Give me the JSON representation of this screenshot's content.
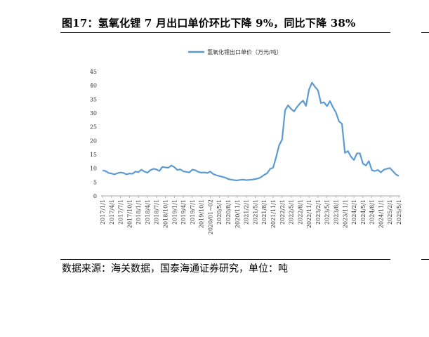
{
  "title": "图17：氢氧化锂 7 月出口单价环比下降 9%，同比下降 38%",
  "source": "数据来源：海关数据，国泰海通证券研究，单位：吨",
  "colors": {
    "line": "#5b9bd5",
    "axis": "#a6a6a6",
    "text": "#333333"
  },
  "chart_data": {
    "type": "line",
    "series": [
      {
        "name": "氢氧化锂出口单价（万元/吨）",
        "values": [
          9.2,
          9.0,
          8.3,
          8.1,
          7.8,
          8.2,
          8.5,
          8.3,
          7.8,
          8.1,
          8.0,
          8.8,
          8.6,
          9.5,
          8.8,
          8.4,
          9.3,
          9.8,
          9.6,
          9.0,
          10.5,
          10.3,
          10.2,
          11.0,
          10.4,
          9.4,
          9.6,
          8.9,
          8.7,
          8.5,
          9.5,
          9.3,
          8.7,
          8.4,
          8.5,
          8.3,
          8.8,
          7.9,
          7.5,
          7.2,
          6.9,
          6.6,
          6.1,
          5.9,
          5.7,
          5.6,
          5.8,
          5.9,
          5.7,
          5.8,
          5.9,
          6.1,
          6.3,
          6.8,
          7.6,
          8.2,
          9.8,
          10.2,
          14.0,
          18.3,
          20.4,
          31.0,
          32.8,
          31.5,
          30.6,
          32.2,
          33.5,
          34.5,
          32.6,
          38.5,
          41.0,
          39.5,
          38.2,
          33.6,
          33.9,
          32.5,
          34.3,
          32.1,
          30.2,
          27.0,
          26.1,
          15.6,
          16.2,
          14.2,
          13.0,
          15.4,
          15.4,
          11.7,
          11.0,
          12.6,
          9.3,
          9.0,
          9.4,
          8.5,
          9.5,
          9.8,
          10.1,
          9.0,
          7.8,
          7.2
        ]
      }
    ],
    "x_tick_labels": [
      "2017/1/1",
      "2017/4/1",
      "2017/7/1",
      "2017/10/1",
      "2018/1/1",
      "2018/4/1",
      "2018/7/1",
      "2018/10/1",
      "2019/1/1",
      "2019/4/1",
      "2019/7/1",
      "2019/10/1",
      "2020/01~02",
      "2020/5/1",
      "2020/8/1",
      "2020/11/1",
      "2021/2/1",
      "2021/5/1",
      "2021/8/1",
      "2021/11/1",
      "2022/2/1",
      "2022/5/1",
      "2022/8/1",
      "2022/11/1",
      "2023/2/1",
      "2023/5/1",
      "2023/8/1",
      "2023/11/1",
      "2024/2/1",
      "2024/5/1",
      "2024/8/1",
      "2024/11/1",
      "2025/2/1",
      "2025/5/1"
    ],
    "y_ticks": [
      "0",
      "5",
      "10",
      "15",
      "20",
      "25",
      "30",
      "35",
      "40",
      "45"
    ],
    "ylim": [
      0,
      45
    ],
    "legend_position": "top-center",
    "grid": false
  }
}
